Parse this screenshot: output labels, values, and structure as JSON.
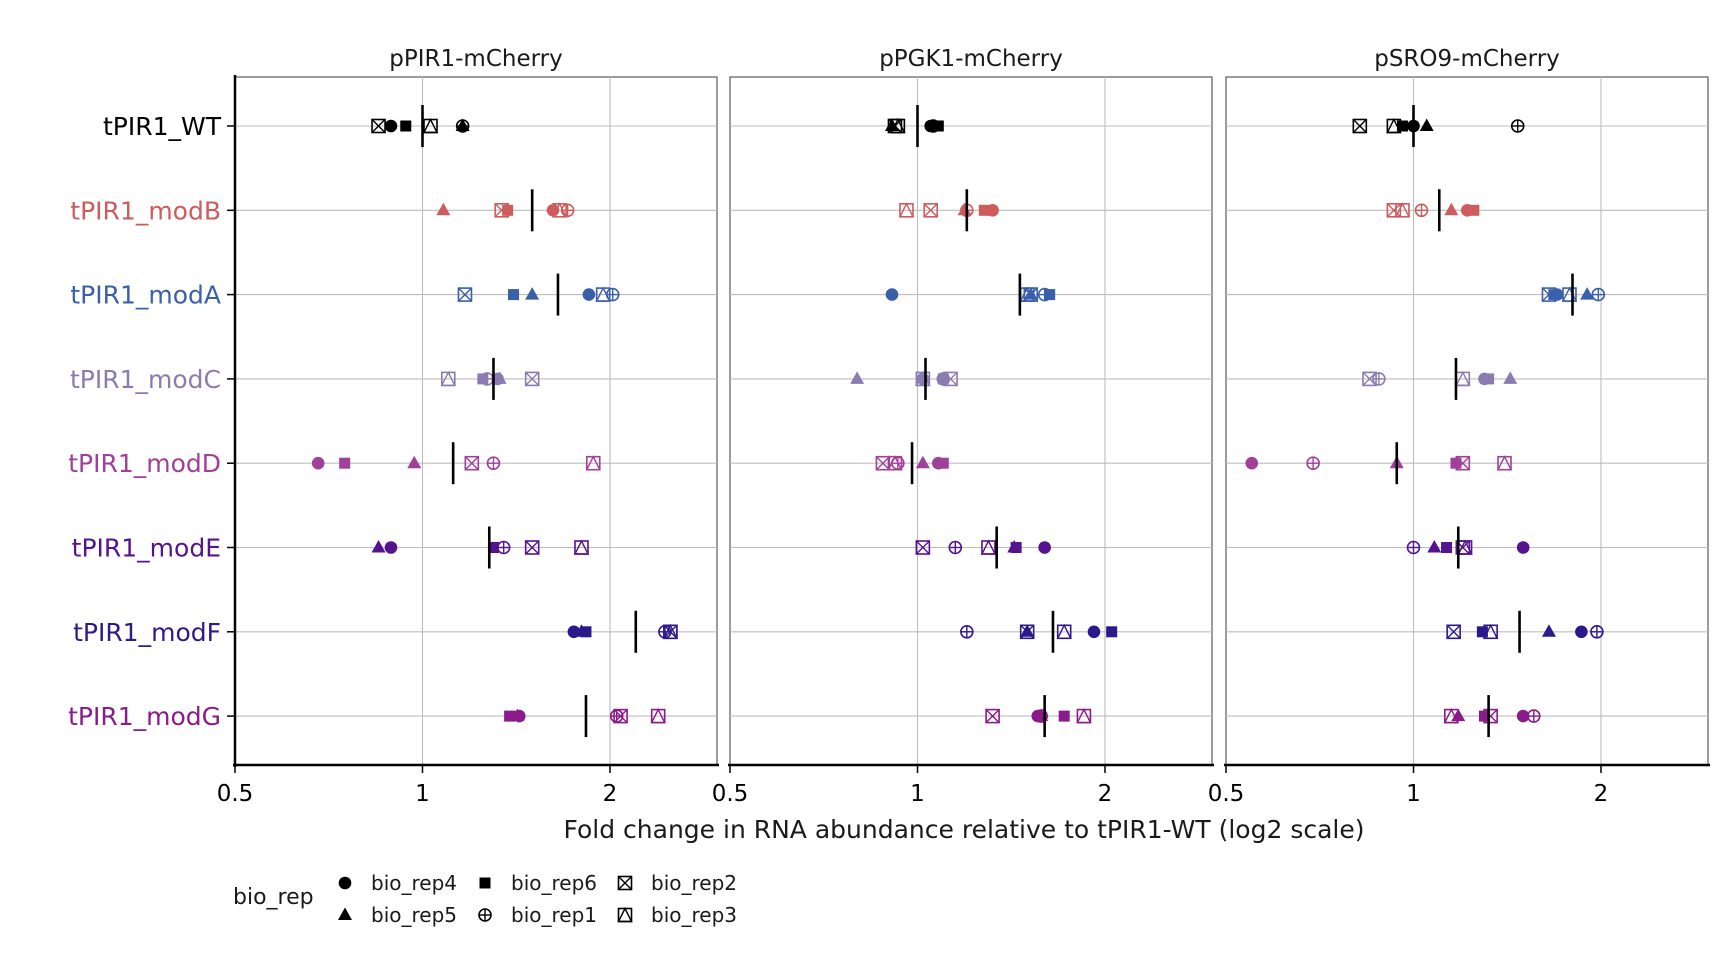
{
  "chart_data": {
    "type": "scatter",
    "x_axis": {
      "title": "Fold change in RNA abundance relative to tPIR1-WT (log2 scale)",
      "scale": "log2",
      "ticks": [
        0.5,
        1,
        2
      ],
      "tick_labels": [
        "0.5",
        "1",
        "2"
      ],
      "xlim": [
        0.5,
        2.9
      ]
    },
    "grid": true,
    "legend": {
      "title": "bio_rep",
      "position": "bottom-left",
      "items": [
        {
          "label": "bio_rep4",
          "shape": "circle"
        },
        {
          "label": "bio_rep5",
          "shape": "triangle"
        },
        {
          "label": "bio_rep6",
          "shape": "square"
        },
        {
          "label": "bio_rep1",
          "shape": "circle-plus"
        },
        {
          "label": "bio_rep2",
          "shape": "square-x"
        },
        {
          "label": "bio_rep3",
          "shape": "square-triangle"
        }
      ]
    },
    "categories": [
      "tPIR1_WT",
      "tPIR1_modB",
      "tPIR1_modA",
      "tPIR1_modC",
      "tPIR1_modD",
      "tPIR1_modE",
      "tPIR1_modF",
      "tPIR1_modG"
    ],
    "category_colors": [
      "#000000",
      "#cd5c5c",
      "#3a5fab",
      "#8c7bb0",
      "#a0409a",
      "#55138f",
      "#2c1a8c",
      "#8b1a8b"
    ],
    "series_order": [
      "bio_rep4",
      "bio_rep5",
      "bio_rep6",
      "bio_rep1",
      "bio_rep2",
      "bio_rep3"
    ],
    "facets": [
      {
        "title": "pPIR1-mCherry",
        "rows": [
          {
            "values": [
              0.89,
              1.16,
              0.94,
              1.16,
              0.85,
              1.03
            ],
            "median": 1.0
          },
          {
            "values": [
              1.62,
              1.08,
              1.37,
              1.71,
              1.34,
              1.66
            ],
            "median": 1.5
          },
          {
            "values": [
              1.85,
              1.5,
              1.4,
              2.02,
              1.17,
              1.95
            ],
            "median": 1.65
          },
          {
            "values": [
              1.32,
              1.33,
              1.25,
              1.27,
              1.5,
              1.1
            ],
            "median": 1.3
          },
          {
            "values": [
              0.68,
              0.97,
              0.75,
              1.3,
              1.2,
              1.88
            ],
            "median": 1.12
          },
          {
            "values": [
              0.89,
              0.85,
              1.3,
              1.35,
              1.5,
              1.8
            ],
            "median": 1.28
          },
          {
            "values": [
              1.75,
              1.8,
              1.83,
              2.45,
              2.5,
              2.5
            ],
            "median": 2.2
          },
          {
            "values": [
              1.43,
              1.42,
              1.38,
              2.05,
              2.08,
              2.39
            ],
            "median": 1.83
          }
        ]
      },
      {
        "title": "pPGK1-mCherry",
        "rows": [
          {
            "values": [
              1.05,
              0.91,
              1.08,
              1.06,
              0.92,
              0.93
            ],
            "median": 1.0
          },
          {
            "values": [
              1.32,
              1.19,
              1.28,
              1.2,
              1.05,
              0.96
            ],
            "median": 1.2
          },
          {
            "values": [
              0.91,
              1.52,
              1.63,
              1.6,
              1.52,
              1.5
            ],
            "median": 1.46
          },
          {
            "values": [
              1.02,
              0.8,
              1.1,
              1.1,
              1.13,
              1.02
            ],
            "median": 1.03
          },
          {
            "values": [
              1.08,
              1.02,
              1.1,
              0.93,
              0.88,
              0.92
            ],
            "median": 0.98
          },
          {
            "values": [
              1.6,
              1.43,
              1.44,
              1.15,
              1.02,
              1.3
            ],
            "median": 1.34
          },
          {
            "values": [
              1.92,
              1.5,
              2.05,
              1.2,
              1.5,
              1.72
            ],
            "median": 1.65
          },
          {
            "values": [
              1.56,
              1.58,
              1.72,
              1.58,
              1.32,
              1.85
            ],
            "median": 1.6
          }
        ]
      },
      {
        "title": "pSRO9-mCherry",
        "rows": [
          {
            "values": [
              1.0,
              1.05,
              0.96,
              1.47,
              0.82,
              0.93
            ],
            "median": 1.0
          },
          {
            "values": [
              1.22,
              1.15,
              1.25,
              1.03,
              0.93,
              0.96
            ],
            "median": 1.1
          },
          {
            "values": [
              1.7,
              1.9,
              1.68,
              1.98,
              1.65,
              1.78
            ],
            "median": 1.8
          },
          {
            "values": [
              1.3,
              1.43,
              1.32,
              0.88,
              0.85,
              1.2
            ],
            "median": 1.17
          },
          {
            "values": [
              0.55,
              0.94,
              1.17,
              0.69,
              1.2,
              1.4
            ],
            "median": 0.94
          },
          {
            "values": [
              1.5,
              1.08,
              1.13,
              1.0,
              1.2,
              1.21
            ],
            "median": 1.18
          },
          {
            "values": [
              1.86,
              1.65,
              1.29,
              1.97,
              1.16,
              1.33
            ],
            "median": 1.48
          },
          {
            "values": [
              1.5,
              1.18,
              1.3,
              1.56,
              1.33,
              1.15
            ],
            "median": 1.32
          }
        ]
      }
    ]
  }
}
